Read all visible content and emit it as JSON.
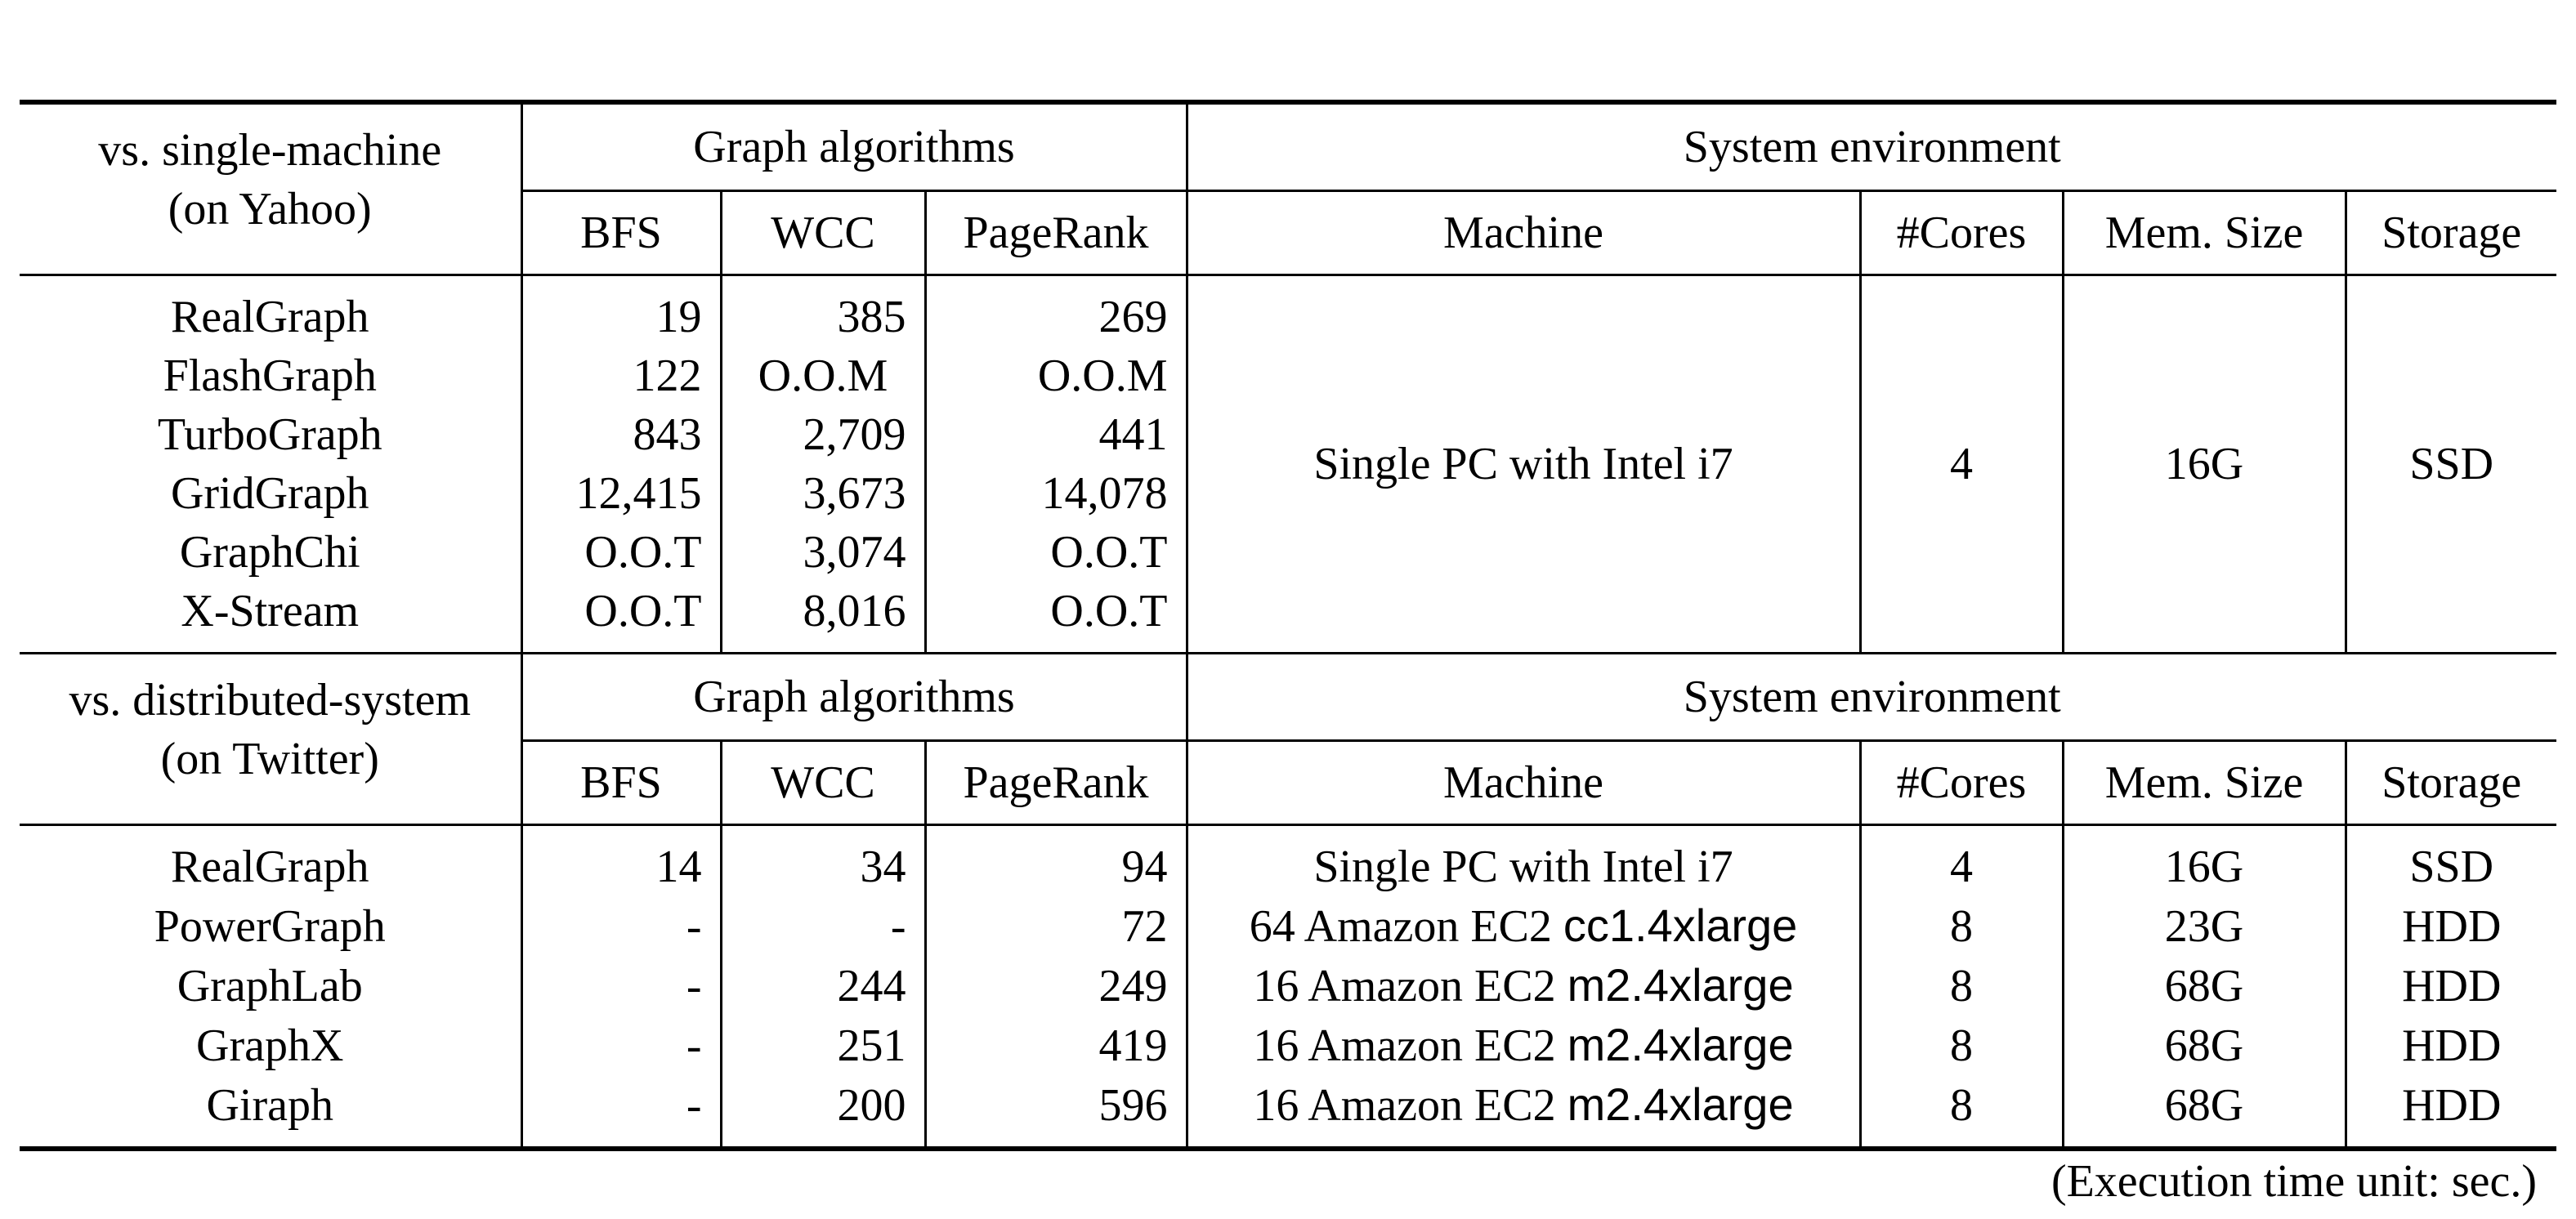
{
  "headers": {
    "group_algorithms": "Graph algorithms",
    "group_system": "System environment",
    "algo_columns": [
      "BFS",
      "WCC",
      "PageRank"
    ],
    "sys_columns": [
      "Machine",
      "#Cores",
      "Mem. Size",
      "Storage"
    ]
  },
  "section1": {
    "title_line1": "vs. single-machine",
    "title_line2": "(on Yahoo)",
    "rows": [
      {
        "system": "RealGraph",
        "bfs": "19",
        "wcc": "385",
        "pagerank": "269"
      },
      {
        "system": "FlashGraph",
        "bfs": "122",
        "wcc": "O.O.M",
        "pagerank": "O.O.M"
      },
      {
        "system": "TurboGraph",
        "bfs": "843",
        "wcc": "2,709",
        "pagerank": "441"
      },
      {
        "system": "GridGraph",
        "bfs": "12,415",
        "wcc": "3,673",
        "pagerank": "14,078"
      },
      {
        "system": "GraphChi",
        "bfs": "O.O.T",
        "wcc": "3,074",
        "pagerank": "O.O.T"
      },
      {
        "system": "X-Stream",
        "bfs": "O.O.T",
        "wcc": "8,016",
        "pagerank": "O.O.T"
      }
    ],
    "env": {
      "machine": "Single PC with Intel i7",
      "cores": "4",
      "mem": "16G",
      "storage": "SSD"
    }
  },
  "section2": {
    "title_line1": "vs. distributed-system",
    "title_line2": "(on Twitter)",
    "rows": [
      {
        "system": "RealGraph",
        "bfs": "14",
        "wcc": "34",
        "pagerank": "94",
        "machine_prefix": "Single PC with Intel i7",
        "machine_type": "",
        "cores": "4",
        "mem": "16G",
        "storage": "SSD"
      },
      {
        "system": "PowerGraph",
        "bfs": "-",
        "wcc": "-",
        "pagerank": "72",
        "machine_prefix": "64 Amazon EC2",
        "machine_type": "cc1.4xlarge",
        "cores": "8",
        "mem": "23G",
        "storage": "HDD"
      },
      {
        "system": "GraphLab",
        "bfs": "-",
        "wcc": "244",
        "pagerank": "249",
        "machine_prefix": "16 Amazon EC2",
        "machine_type": "m2.4xlarge",
        "cores": "8",
        "mem": "68G",
        "storage": "HDD"
      },
      {
        "system": "GraphX",
        "bfs": "-",
        "wcc": "251",
        "pagerank": "419",
        "machine_prefix": "16 Amazon EC2",
        "machine_type": "m2.4xlarge",
        "cores": "8",
        "mem": "68G",
        "storage": "HDD"
      },
      {
        "system": "Giraph",
        "bfs": "-",
        "wcc": "200",
        "pagerank": "596",
        "machine_prefix": "16 Amazon EC2",
        "machine_type": "m2.4xlarge",
        "cores": "8",
        "mem": "68G",
        "storage": "HDD"
      }
    ]
  },
  "footnote": "(Execution time unit: sec.)"
}
